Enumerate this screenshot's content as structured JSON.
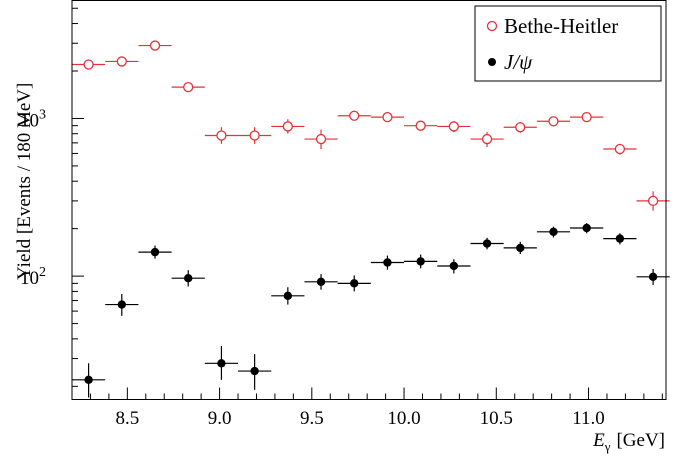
{
  "chart_data": {
    "type": "scatter",
    "xlabel": "E",
    "xlabel_sub": "γ",
    "xlabel_unit": "[GeV]",
    "ylabel": "Yield [Events / 180 MeV]",
    "y_scale": "log",
    "xlim": [
      8.2,
      11.42
    ],
    "ylim": [
      16.5,
      5600
    ],
    "x_ticks": [
      "8.5",
      "9.0",
      "9.5",
      "10.0",
      "10.5",
      "11.0"
    ],
    "y_ticks": [
      {
        "base": "10",
        "exp": "2"
      },
      {
        "base": "10",
        "exp": "3"
      }
    ],
    "bin_half_width": 0.09,
    "legend_position": "top-right",
    "series": [
      {
        "name": "Bethe-Heitler",
        "marker": "open-circle",
        "color": "#e8303a",
        "x": [
          8.29,
          8.47,
          8.65,
          8.83,
          9.01,
          9.19,
          9.37,
          9.55,
          9.73,
          9.91,
          10.09,
          10.27,
          10.45,
          10.63,
          10.81,
          10.99,
          11.17,
          11.35
        ],
        "y": [
          2200,
          2300,
          2900,
          1580,
          780,
          780,
          890,
          740,
          1040,
          1020,
          900,
          890,
          740,
          880,
          960,
          1020,
          640,
          300
        ],
        "y_err_low": [
          80,
          80,
          100,
          70,
          90,
          90,
          90,
          100,
          70,
          70,
          60,
          70,
          80,
          70,
          70,
          50,
          50,
          40
        ],
        "y_err_high": [
          80,
          80,
          100,
          70,
          100,
          100,
          100,
          110,
          80,
          80,
          70,
          70,
          80,
          70,
          70,
          50,
          50,
          45
        ]
      },
      {
        "name": "J/ψ",
        "marker": "filled-circle",
        "color": "#000000",
        "x": [
          8.29,
          8.47,
          8.65,
          8.83,
          9.01,
          9.19,
          9.37,
          9.55,
          9.73,
          9.91,
          10.09,
          10.27,
          10.45,
          10.63,
          10.81,
          10.99,
          11.17,
          11.35
        ],
        "y": [
          22,
          66,
          142,
          97,
          28,
          25,
          75,
          92,
          90,
          122,
          124,
          116,
          161,
          151,
          191,
          202,
          173,
          99
        ],
        "y_err_low": [
          5,
          10,
          13,
          11,
          6,
          6,
          9,
          10,
          10,
          12,
          12,
          12,
          13,
          13,
          15,
          15,
          14,
          11
        ],
        "y_err_high": [
          6,
          11,
          14,
          12,
          8,
          7,
          10,
          11,
          11,
          13,
          13,
          12,
          14,
          14,
          15,
          15,
          14,
          12
        ]
      }
    ]
  }
}
